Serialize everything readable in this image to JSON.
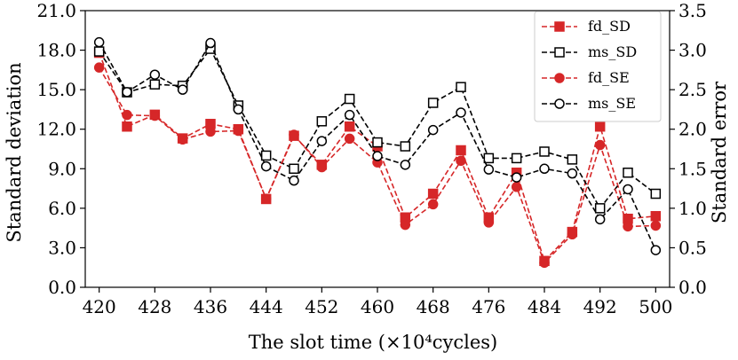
{
  "chart_data": {
    "type": "line",
    "xlabel": "The slot time (×10⁴cycles)",
    "ylabel_left": "Standard deviation",
    "ylabel_right": "Standard error",
    "x_ticks": [
      420,
      428,
      436,
      444,
      452,
      460,
      468,
      476,
      484,
      492,
      500
    ],
    "ylim_left": [
      0,
      21
    ],
    "y_ticks_left": [
      "0.0",
      "3.0",
      "6.0",
      "9.0",
      "12.0",
      "15.0",
      "18.0",
      "21.0"
    ],
    "ylim_right": [
      0,
      3.5
    ],
    "y_ticks_right": [
      "0.0",
      "0.5",
      "1.0",
      "1.5",
      "2.0",
      "2.5",
      "3.0",
      "3.5"
    ],
    "grid": false,
    "legend_position": "top-right",
    "x": [
      420,
      424,
      428,
      432,
      436,
      440,
      444,
      448,
      452,
      456,
      460,
      464,
      468,
      472,
      476,
      480,
      484,
      488,
      492,
      496,
      500
    ],
    "series": [
      {
        "name": "fd_SD",
        "axis": "left",
        "color": "#d62728",
        "marker": "square-filled",
        "dashed": true,
        "values": [
          17.8,
          12.2,
          13.1,
          11.3,
          12.4,
          12.0,
          6.7,
          11.5,
          9.3,
          12.2,
          10.7,
          5.3,
          7.1,
          10.4,
          5.3,
          8.7,
          2.0,
          4.2,
          12.2,
          5.2,
          5.4
        ]
      },
      {
        "name": "ms_SD",
        "axis": "left",
        "color": "#000000",
        "marker": "square-open",
        "dashed": true,
        "values": [
          17.9,
          14.8,
          15.4,
          15.3,
          18.1,
          13.8,
          10.0,
          9.0,
          12.6,
          14.3,
          11.0,
          10.7,
          14.0,
          15.2,
          9.8,
          9.8,
          10.3,
          9.7,
          6.0,
          8.7,
          7.1
        ]
      },
      {
        "name": "fd_SE",
        "axis": "right",
        "color": "#d62728",
        "marker": "circle-filled",
        "dashed": true,
        "values": [
          2.78,
          2.18,
          2.17,
          1.87,
          1.97,
          1.98,
          1.12,
          1.93,
          1.52,
          1.88,
          1.58,
          0.79,
          1.05,
          1.6,
          0.82,
          1.27,
          0.31,
          0.67,
          1.8,
          0.77,
          0.78
        ]
      },
      {
        "name": "ms_SE",
        "axis": "right",
        "color": "#000000",
        "marker": "circle-open",
        "dashed": true,
        "values": [
          3.1,
          2.47,
          2.69,
          2.5,
          3.09,
          2.25,
          1.53,
          1.35,
          1.85,
          2.18,
          1.66,
          1.55,
          1.99,
          2.21,
          1.49,
          1.39,
          1.5,
          1.44,
          0.86,
          1.24,
          0.47
        ]
      }
    ]
  }
}
